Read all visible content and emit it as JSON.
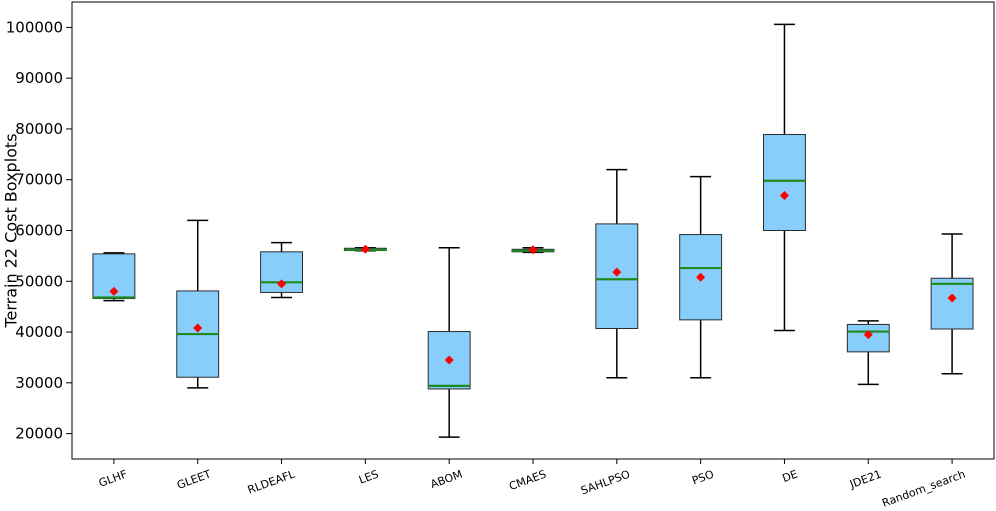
{
  "chart_data": {
    "type": "boxplot",
    "title": "",
    "xlabel": "",
    "ylabel": "Terrain 22 Cost Boxplots",
    "ylim": [
      15000,
      105000
    ],
    "yticks": [
      20000,
      30000,
      40000,
      50000,
      60000,
      70000,
      80000,
      90000,
      100000
    ],
    "ytick_labels": [
      "20000",
      "30000",
      "40000",
      "50000",
      "60000",
      "70000",
      "80000",
      "90000",
      "100000"
    ],
    "grid": false,
    "colors": {
      "box_fill": "#87cefa",
      "box_edge": "#2b2b2b",
      "median": "#1e8a1e",
      "mean": "#ff0000",
      "whisker": "#000000"
    },
    "categories": [
      "GLHF",
      "GLEET",
      "RLDEAFL",
      "LES",
      "ABOM",
      "CMAES",
      "SAHLPSO",
      "PSO",
      "DE",
      "JDE21",
      "Random_search"
    ],
    "boxes": [
      {
        "label": "GLHF",
        "whislo": 46200,
        "q1": 46600,
        "med": 46800,
        "q3": 55400,
        "whishi": 55600,
        "mean": 48000
      },
      {
        "label": "GLEET",
        "whislo": 29000,
        "q1": 31100,
        "med": 39600,
        "q3": 48100,
        "whishi": 62000,
        "mean": 40800
      },
      {
        "label": "RLDEAFL",
        "whislo": 46800,
        "q1": 47800,
        "med": 49800,
        "q3": 55800,
        "whishi": 57600,
        "mean": 49500
      },
      {
        "label": "LES",
        "whislo": 56000,
        "q1": 56050,
        "med": 56200,
        "q3": 56500,
        "whishi": 56600,
        "mean": 56300
      },
      {
        "label": "ABOM",
        "whislo": 19300,
        "q1": 28800,
        "med": 29400,
        "q3": 40100,
        "whishi": 56600,
        "mean": 34500
      },
      {
        "label": "CMAES",
        "whislo": 55700,
        "q1": 55800,
        "med": 56000,
        "q3": 56300,
        "whishi": 56600,
        "mean": 56200
      },
      {
        "label": "SAHLPSO",
        "whislo": 31000,
        "q1": 40700,
        "med": 50400,
        "q3": 61300,
        "whishi": 72000,
        "mean": 51800
      },
      {
        "label": "PSO",
        "whislo": 31000,
        "q1": 42400,
        "med": 52600,
        "q3": 59200,
        "whishi": 70600,
        "mean": 50800
      },
      {
        "label": "DE",
        "whislo": 40300,
        "q1": 60000,
        "med": 69800,
        "q3": 78900,
        "whishi": 100600,
        "mean": 66900
      },
      {
        "label": "JDE21",
        "whislo": 29700,
        "q1": 36100,
        "med": 40100,
        "q3": 41500,
        "whishi": 42200,
        "mean": 39500
      },
      {
        "label": "Random_search",
        "whislo": 31800,
        "q1": 40600,
        "med": 49500,
        "q3": 50600,
        "whishi": 59300,
        "mean": 46700
      }
    ]
  }
}
